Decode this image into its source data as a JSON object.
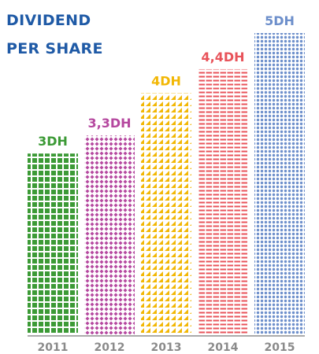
{
  "chart_data": {
    "type": "bar",
    "title": "DIVIDEND PER SHARE",
    "categories": [
      "2011",
      "2012",
      "2013",
      "2014",
      "2015"
    ],
    "values": [
      3,
      3.3,
      4,
      4.4,
      5
    ],
    "value_labels": [
      "3DH",
      "3,3DH",
      "4DH",
      "4,4DH",
      "5DH"
    ],
    "colors": [
      "#3c9a36",
      "#b5489f",
      "#f2b705",
      "#e8535a",
      "#6d8fcb"
    ]
  }
}
